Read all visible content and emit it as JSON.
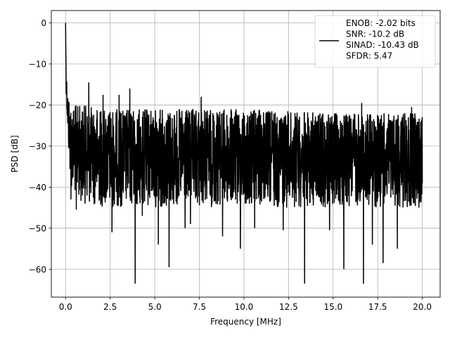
{
  "chart_data": {
    "type": "line",
    "xlabel": "Frequency [MHz]",
    "ylabel": "PSD [dB]",
    "xlim": [
      -0.8,
      21.0
    ],
    "ylim": [
      -66.8,
      3.0
    ],
    "xticks": [
      0.0,
      2.5,
      5.0,
      7.5,
      10.0,
      12.5,
      15.0,
      17.5,
      20.0
    ],
    "xtick_labels": [
      "0.0",
      "2.5",
      "5.0",
      "7.5",
      "10.0",
      "12.5",
      "15.0",
      "17.5",
      "20.0"
    ],
    "yticks": [
      0,
      -10,
      -20,
      -30,
      -40,
      -50,
      -60
    ],
    "ytick_labels": [
      "0",
      "−10",
      "−20",
      "−30",
      "−40",
      "−50",
      "−60"
    ],
    "grid": true,
    "legend_position": "upper right",
    "legend_entries": [
      "ENOB: -2.02 bits",
      "SNR: -10.2 dB",
      "SINAD: -10.43 dB",
      "SFDR: 5.47"
    ],
    "series": [
      {
        "color": "#000000",
        "x": [
          0.0,
          0.02,
          0.05,
          0.1,
          0.15,
          0.2,
          0.3,
          0.5,
          1.0,
          2.0,
          5.0,
          10.0,
          15.0,
          20.0
        ],
        "values": [
          0.0,
          -10,
          -15,
          -18,
          -20,
          -22,
          -25,
          -26,
          -27,
          -28,
          -29,
          -29,
          -29,
          -29
        ],
        "noise_band_upper": [
          0.0,
          -8,
          -12,
          -16,
          -17,
          -18,
          -19,
          -20,
          -20,
          -21,
          -21,
          -21,
          -22,
          -22
        ],
        "noise_band_lower": [
          0.0,
          -14,
          -20,
          -25,
          -30,
          -35,
          -40,
          -42,
          -44,
          -45,
          -45,
          -45,
          -45,
          -45
        ]
      }
    ],
    "notable_dips": [
      {
        "x": 0.3,
        "y": -43
      },
      {
        "x": 0.6,
        "y": -45.5
      },
      {
        "x": 2.6,
        "y": -51
      },
      {
        "x": 3.9,
        "y": -63.5
      },
      {
        "x": 4.3,
        "y": -47
      },
      {
        "x": 5.2,
        "y": -54
      },
      {
        "x": 5.8,
        "y": -59.5
      },
      {
        "x": 6.7,
        "y": -50
      },
      {
        "x": 7.0,
        "y": -49
      },
      {
        "x": 8.8,
        "y": -52
      },
      {
        "x": 9.8,
        "y": -55
      },
      {
        "x": 10.6,
        "y": -50
      },
      {
        "x": 12.2,
        "y": -50.5
      },
      {
        "x": 13.4,
        "y": -63.5
      },
      {
        "x": 14.8,
        "y": -50.5
      },
      {
        "x": 15.6,
        "y": -60
      },
      {
        "x": 16.7,
        "y": -63.5
      },
      {
        "x": 17.2,
        "y": -54
      },
      {
        "x": 17.8,
        "y": -58.5
      },
      {
        "x": 18.6,
        "y": -55
      }
    ],
    "notable_peaks": [
      {
        "x": 1.3,
        "y": -14.5
      },
      {
        "x": 2.1,
        "y": -17.5
      },
      {
        "x": 3.0,
        "y": -17.5
      },
      {
        "x": 3.6,
        "y": -16
      },
      {
        "x": 7.6,
        "y": -18
      },
      {
        "x": 16.6,
        "y": -19.5
      },
      {
        "x": 19.4,
        "y": -20.5
      }
    ]
  }
}
